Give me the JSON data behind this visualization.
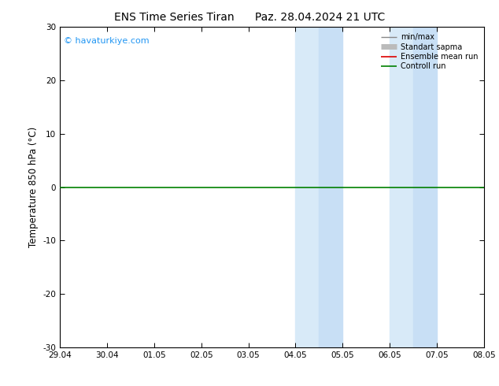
{
  "title_left": "ENS Time Series Tiran",
  "title_right": "Paz. 28.04.2024 21 UTC",
  "ylabel": "Temperature 850 hPa (°C)",
  "xlim_labels": [
    "29.04",
    "30.04",
    "01.05",
    "02.05",
    "03.05",
    "04.05",
    "05.05",
    "06.05",
    "07.05",
    "08.05"
  ],
  "ylim": [
    -30,
    30
  ],
  "yticks": [
    -30,
    -20,
    -10,
    0,
    10,
    20,
    30
  ],
  "shaded_regions": [
    {
      "xstart": 5.0,
      "xend": 5.5,
      "color": "#ddeeff"
    },
    {
      "xstart": 5.5,
      "xend": 6.0,
      "color": "#cce0f5"
    },
    {
      "xstart": 7.0,
      "xend": 7.5,
      "color": "#ddeeff"
    },
    {
      "xstart": 7.5,
      "xend": 8.0,
      "color": "#cce0f5"
    }
  ],
  "hline_y": 0,
  "hline_color": "#008000",
  "hline_lw": 1.2,
  "watermark": "© havaturkiye.com",
  "watermark_color": "#2196F3",
  "legend_items": [
    {
      "label": "min/max",
      "color": "#888888",
      "lw": 1.0,
      "ls": "-"
    },
    {
      "label": "Standart sapma",
      "color": "#bbbbbb",
      "lw": 5,
      "ls": "-"
    },
    {
      "label": "Ensemble mean run",
      "color": "#dd0000",
      "lw": 1.2,
      "ls": "-"
    },
    {
      "label": "Controll run",
      "color": "#008000",
      "lw": 1.2,
      "ls": "-"
    }
  ],
  "background_color": "#ffffff",
  "plot_bg_color": "#ffffff",
  "border_color": "#000000",
  "title_fontsize": 10,
  "tick_fontsize": 7.5,
  "ylabel_fontsize": 8.5
}
